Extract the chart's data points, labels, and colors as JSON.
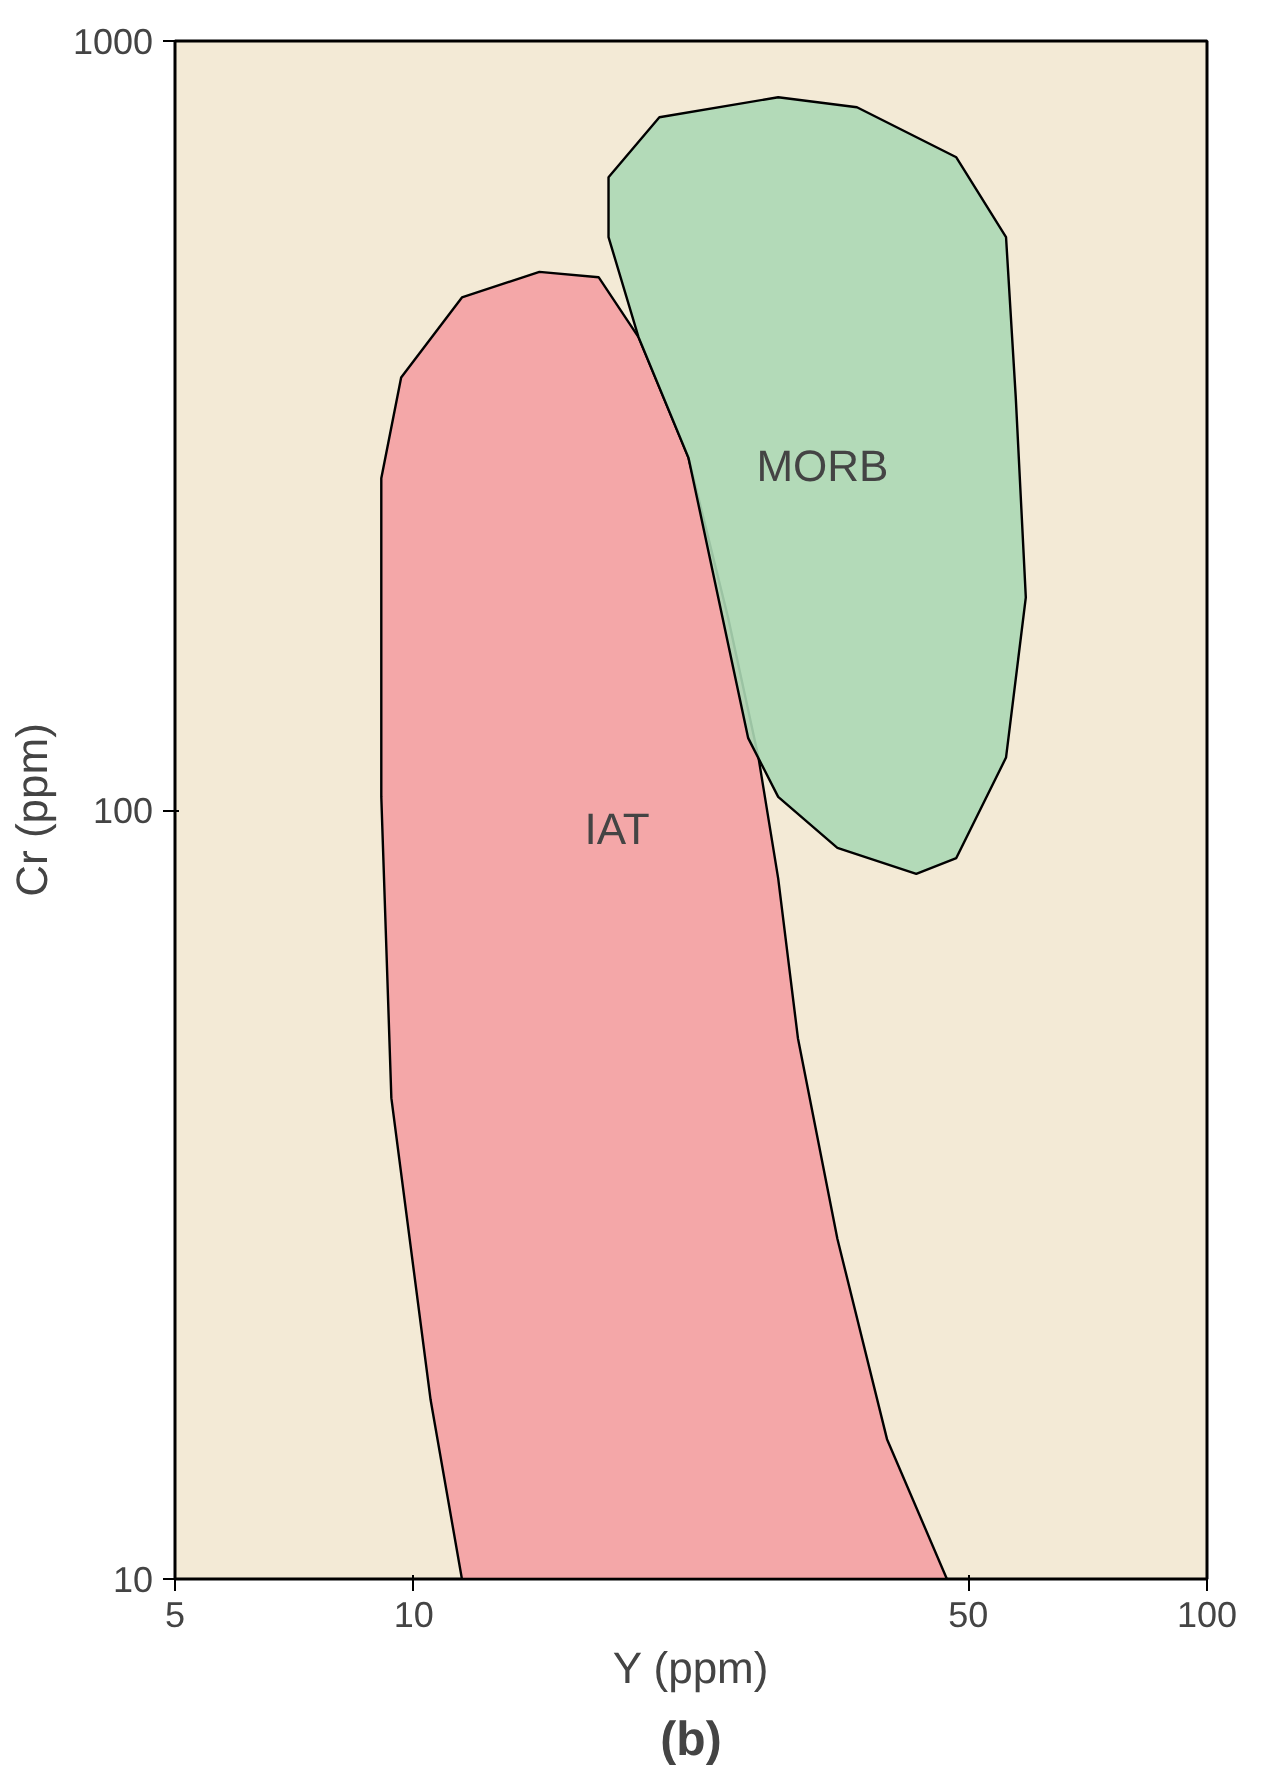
{
  "chart_data": {
    "type": "area",
    "xlabel": "Y (ppm)",
    "ylabel": "Cr (ppm)",
    "log": "xy",
    "xlim": [
      5,
      100
    ],
    "xticks": [
      5,
      10,
      50,
      100
    ],
    "ylim": [
      10,
      1000
    ],
    "yticks": [
      10,
      100,
      1000
    ],
    "grid": false,
    "legend": false,
    "annotations": [
      "(b)"
    ],
    "series": [
      {
        "name": "IAT",
        "color": "#f4a0a3",
        "x": [
          11.5,
          10.5,
          9.37,
          9.1,
          9.1,
          9.64,
          11.5,
          14.4,
          17.1,
          19.2,
          22.2,
          24.9,
          27.2,
          28.8,
          30.5,
          34.2,
          39.5,
          47.0
        ],
        "values": [
          10,
          17.1,
          42.2,
          104,
          270,
          365,
          464,
          501,
          493,
          412,
          287,
          178,
          117,
          81.5,
          50.5,
          27.7,
          15.2,
          10
        ]
      },
      {
        "name": "MORB",
        "color": "#acd8b5",
        "x": [
          17.6,
          20.4,
          28.8,
          36.2,
          48.3,
          55.8,
          57.4,
          59.1,
          55.8,
          48.3,
          43.0,
          34.2,
          28.8,
          26.4,
          24.2,
          22.2,
          19.2,
          17.6
        ],
        "values": [
          665,
          796,
          845,
          820,
          706,
          556,
          344,
          189,
          117,
          86.6,
          82.6,
          89.3,
          104,
          124,
          189,
          287,
          412,
          556
        ]
      }
    ]
  }
}
